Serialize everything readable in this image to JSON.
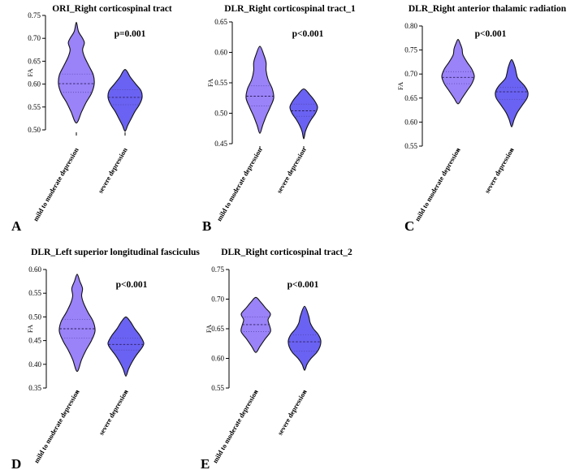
{
  "chart_data": [
    {
      "type": "violin",
      "panel_label": "A",
      "title": "ORI_Right corticospinal tract",
      "pvalue": "p=0.001",
      "ylabel": "FA",
      "ylim": [
        0.5,
        0.75
      ],
      "ticks": [
        "0.50",
        "0.55",
        "0.60",
        "0.65",
        "0.70",
        "0.75"
      ],
      "categories": [
        "mild to moderate depression",
        "severe depression"
      ],
      "groups": [
        {
          "color": "#9a82f8",
          "median": 0.601,
          "quartiles": [
            0.582,
            0.622
          ],
          "profile": [
            [
              0.515,
              0.0
            ],
            [
              0.54,
              0.3
            ],
            [
              0.56,
              0.55
            ],
            [
              0.58,
              0.85
            ],
            [
              0.6,
              1.0
            ],
            [
              0.62,
              0.95
            ],
            [
              0.64,
              0.7
            ],
            [
              0.66,
              0.45
            ],
            [
              0.675,
              0.35
            ],
            [
              0.69,
              0.45
            ],
            [
              0.7,
              0.35
            ],
            [
              0.715,
              0.12
            ],
            [
              0.735,
              0.0
            ]
          ]
        },
        {
          "color": "#6a62f2",
          "median": 0.571,
          "quartiles": [
            0.555,
            0.588
          ],
          "profile": [
            [
              0.497,
              0.0
            ],
            [
              0.51,
              0.15
            ],
            [
              0.525,
              0.35
            ],
            [
              0.54,
              0.55
            ],
            [
              0.555,
              0.8
            ],
            [
              0.57,
              0.95
            ],
            [
              0.585,
              0.9
            ],
            [
              0.6,
              0.6
            ],
            [
              0.615,
              0.3
            ],
            [
              0.632,
              0.0
            ]
          ]
        }
      ]
    },
    {
      "type": "violin",
      "panel_label": "B",
      "title": "DLR_Right corticospinal tract_1",
      "pvalue": "p<0.001",
      "ylabel": "FA",
      "ylim": [
        0.45,
        0.65
      ],
      "ticks": [
        "0.45",
        "0.50",
        "0.55",
        "0.60",
        "0.65"
      ],
      "categories": [
        "mild to moderate depression",
        "severe depression"
      ],
      "groups": [
        {
          "color": "#9a82f8",
          "median": 0.528,
          "quartiles": [
            0.512,
            0.545
          ],
          "profile": [
            [
              0.467,
              0.0
            ],
            [
              0.48,
              0.2
            ],
            [
              0.495,
              0.45
            ],
            [
              0.51,
              0.75
            ],
            [
              0.525,
              1.0
            ],
            [
              0.54,
              0.9
            ],
            [
              0.555,
              0.6
            ],
            [
              0.57,
              0.45
            ],
            [
              0.583,
              0.45
            ],
            [
              0.595,
              0.3
            ],
            [
              0.61,
              0.0
            ]
          ]
        },
        {
          "color": "#6a62f2",
          "median": 0.504,
          "quartiles": [
            0.495,
            0.515
          ],
          "profile": [
            [
              0.458,
              0.0
            ],
            [
              0.47,
              0.12
            ],
            [
              0.48,
              0.3
            ],
            [
              0.49,
              0.55
            ],
            [
              0.5,
              0.85
            ],
            [
              0.51,
              1.0
            ],
            [
              0.52,
              0.8
            ],
            [
              0.53,
              0.45
            ],
            [
              0.54,
              0.0
            ]
          ]
        }
      ]
    },
    {
      "type": "violin",
      "panel_label": "C",
      "title": "DLR_Right anterior thalamic radiation",
      "pvalue": "p<0.001",
      "ylabel": "FA",
      "ylim": [
        0.55,
        0.8
      ],
      "ticks": [
        "0.55",
        "0.60",
        "0.65",
        "0.70",
        "0.75",
        "0.80"
      ],
      "categories": [
        "mild to moderate depression",
        "severe depression"
      ],
      "groups": [
        {
          "color": "#9a82f8",
          "median": 0.693,
          "quartiles": [
            0.68,
            0.705
          ],
          "profile": [
            [
              0.638,
              0.0
            ],
            [
              0.65,
              0.25
            ],
            [
              0.665,
              0.55
            ],
            [
              0.68,
              0.85
            ],
            [
              0.695,
              1.0
            ],
            [
              0.71,
              0.85
            ],
            [
              0.725,
              0.55
            ],
            [
              0.74,
              0.3
            ],
            [
              0.752,
              0.25
            ],
            [
              0.762,
              0.15
            ],
            [
              0.772,
              0.0
            ]
          ]
        },
        {
          "color": "#6a62f2",
          "median": 0.663,
          "quartiles": [
            0.647,
            0.672
          ],
          "profile": [
            [
              0.59,
              0.0
            ],
            [
              0.605,
              0.15
            ],
            [
              0.62,
              0.35
            ],
            [
              0.635,
              0.65
            ],
            [
              0.65,
              0.95
            ],
            [
              0.662,
              1.0
            ],
            [
              0.675,
              0.8
            ],
            [
              0.69,
              0.4
            ],
            [
              0.7,
              0.3
            ],
            [
              0.715,
              0.2
            ],
            [
              0.73,
              0.0
            ]
          ]
        }
      ]
    },
    {
      "type": "violin",
      "panel_label": "D",
      "title": "DLR_Left superior longitudinal fasciculus",
      "pvalue": "p<0.001",
      "ylabel": "FA",
      "ylim": [
        0.35,
        0.6
      ],
      "ticks": [
        "0.35",
        "0.40",
        "0.45",
        "0.50",
        "0.55",
        "0.60"
      ],
      "categories": [
        "mild to moderate depression",
        "severe depression"
      ],
      "groups": [
        {
          "color": "#9a82f8",
          "median": 0.475,
          "quartiles": [
            0.455,
            0.495
          ],
          "profile": [
            [
              0.385,
              0.0
            ],
            [
              0.41,
              0.25
            ],
            [
              0.43,
              0.5
            ],
            [
              0.45,
              0.8
            ],
            [
              0.47,
              1.0
            ],
            [
              0.49,
              0.9
            ],
            [
              0.51,
              0.6
            ],
            [
              0.53,
              0.35
            ],
            [
              0.545,
              0.25
            ],
            [
              0.56,
              0.3
            ],
            [
              0.575,
              0.15
            ],
            [
              0.59,
              0.0
            ]
          ]
        },
        {
          "color": "#6a62f2",
          "median": 0.442,
          "quartiles": [
            0.43,
            0.455
          ],
          "profile": [
            [
              0.375,
              0.0
            ],
            [
              0.39,
              0.15
            ],
            [
              0.405,
              0.35
            ],
            [
              0.42,
              0.6
            ],
            [
              0.435,
              0.9
            ],
            [
              0.445,
              1.0
            ],
            [
              0.46,
              0.8
            ],
            [
              0.475,
              0.5
            ],
            [
              0.49,
              0.25
            ],
            [
              0.5,
              0.0
            ]
          ]
        }
      ]
    },
    {
      "type": "violin",
      "panel_label": "E",
      "title": "DLR_Right corticospinal tract_2",
      "pvalue": "p<0.001",
      "ylabel": "FA",
      "ylim": [
        0.55,
        0.75
      ],
      "ticks": [
        "0.55",
        "0.60",
        "0.65",
        "0.70",
        "0.75"
      ],
      "categories": [
        "mild to moderate depression",
        "severe depression"
      ],
      "groups": [
        {
          "color": "#9a82f8",
          "median": 0.657,
          "quartiles": [
            0.645,
            0.67
          ],
          "profile": [
            [
              0.61,
              0.0
            ],
            [
              0.62,
              0.25
            ],
            [
              0.632,
              0.55
            ],
            [
              0.645,
              0.9
            ],
            [
              0.655,
              0.85
            ],
            [
              0.665,
              0.75
            ],
            [
              0.675,
              0.9
            ],
            [
              0.685,
              0.6
            ],
            [
              0.695,
              0.3
            ],
            [
              0.703,
              0.0
            ]
          ]
        },
        {
          "color": "#6a62f2",
          "median": 0.628,
          "quartiles": [
            0.612,
            0.64
          ],
          "profile": [
            [
              0.58,
              0.0
            ],
            [
              0.59,
              0.15
            ],
            [
              0.6,
              0.4
            ],
            [
              0.61,
              0.75
            ],
            [
              0.62,
              0.95
            ],
            [
              0.63,
              1.0
            ],
            [
              0.64,
              0.85
            ],
            [
              0.65,
              0.55
            ],
            [
              0.66,
              0.35
            ],
            [
              0.672,
              0.25
            ],
            [
              0.688,
              0.0
            ]
          ]
        }
      ]
    }
  ]
}
